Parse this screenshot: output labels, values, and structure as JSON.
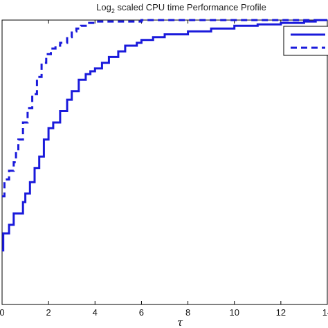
{
  "chart_data": {
    "type": "line",
    "title": "Log2 scaled CPU time Performance Profile",
    "title_parts": {
      "prefix": "Log",
      "subscript": "2",
      "rest": " scaled CPU time Performance Profile"
    },
    "xlabel": "τ",
    "ylabel": "",
    "x_ticks": [
      "0",
      "2",
      "4",
      "6",
      "8",
      "10",
      "12",
      "14"
    ],
    "x_tick_values": [
      0,
      2,
      4,
      6,
      8,
      10,
      12,
      14
    ],
    "xlim": [
      0,
      14
    ],
    "ylim": [
      0.0,
      1.0
    ],
    "grid": false,
    "legend": {
      "position": "top-right",
      "entries": [
        "",
        ""
      ]
    },
    "colors": {
      "series": "#1a1adb",
      "axes": "#000000"
    },
    "series": [
      {
        "style": "solid",
        "x": [
          0.0,
          0.05,
          0.05,
          0.3,
          0.3,
          0.5,
          0.5,
          0.9,
          1.0,
          1.2,
          1.4,
          1.6,
          1.8,
          2.0,
          2.2,
          2.5,
          2.8,
          3.0,
          3.3,
          3.6,
          3.8,
          4.0,
          4.3,
          4.6,
          5.0,
          5.3,
          5.8,
          6.0,
          6.5,
          7.0,
          7.5,
          8.0,
          9.0,
          10.0,
          11.0,
          12.0,
          13.0,
          13.5,
          13.5,
          14.0
        ],
        "y": [
          0.19,
          0.19,
          0.25,
          0.25,
          0.28,
          0.28,
          0.32,
          0.36,
          0.39,
          0.43,
          0.48,
          0.52,
          0.58,
          0.62,
          0.64,
          0.68,
          0.72,
          0.75,
          0.79,
          0.81,
          0.82,
          0.83,
          0.85,
          0.87,
          0.89,
          0.91,
          0.92,
          0.93,
          0.94,
          0.95,
          0.95,
          0.96,
          0.97,
          0.98,
          0.985,
          0.99,
          0.995,
          0.995,
          1.0,
          1.0
        ]
      },
      {
        "style": "dashed",
        "x": [
          0.0,
          0.1,
          0.1,
          0.3,
          0.5,
          0.6,
          0.7,
          0.9,
          0.9,
          1.1,
          1.3,
          1.5,
          1.7,
          1.9,
          2.1,
          2.3,
          2.5,
          2.8,
          3.0,
          3.2,
          3.4,
          3.6,
          3.8,
          4.0,
          4.5,
          5.0,
          6.0,
          7.0,
          8.0,
          9.0,
          10.0,
          11.0,
          12.0,
          13.0,
          14.0
        ],
        "y": [
          0.38,
          0.38,
          0.44,
          0.47,
          0.5,
          0.54,
          0.58,
          0.6,
          0.64,
          0.69,
          0.74,
          0.8,
          0.85,
          0.88,
          0.9,
          0.91,
          0.92,
          0.94,
          0.96,
          0.97,
          0.98,
          0.99,
          0.99,
          0.995,
          0.995,
          0.995,
          1.0,
          1.0,
          1.0,
          1.0,
          1.0,
          1.0,
          1.0,
          1.0,
          1.0
        ]
      }
    ]
  }
}
